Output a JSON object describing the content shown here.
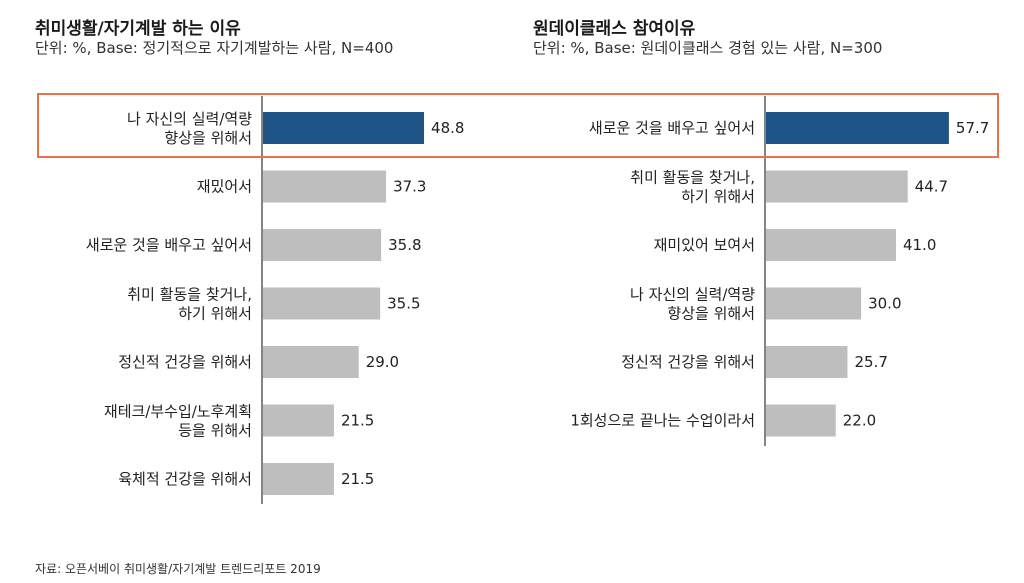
{
  "chart_data": [
    {
      "type": "bar",
      "orientation": "horizontal",
      "title": "취미생활/자기계발 하는 이유",
      "subtitle": "단위: %, Base: 정기적으로 자기계발하는 사람, N=400",
      "categories": [
        "나 자신의 실력/역량\n향상을 위해서",
        "재밌어서",
        "새로운 것을 배우고 싶어서",
        "취미 활동을 찾거나,\n하기 위해서",
        "정신적 건강을 위해서",
        "재테크/부수입/노후계획\n등을 위해서",
        "육체적 건강을 위해서"
      ],
      "values": [
        48.8,
        37.3,
        35.8,
        35.5,
        29.0,
        21.5,
        21.5
      ],
      "value_labels": [
        "48.8",
        "37.3",
        "35.8",
        "35.5",
        "29.0",
        "21.5",
        "21.5"
      ],
      "highlight_index": 0,
      "xlim": [
        0,
        100
      ]
    },
    {
      "type": "bar",
      "orientation": "horizontal",
      "title": "원데이클래스 참여이유",
      "subtitle": "단위: %, Base: 원데이클래스 경험 있는 사람, N=300",
      "categories": [
        "새로운 것을 배우고 싶어서",
        "취미 활동을 찾거나,\n하기 위해서",
        "재미있어 보여서",
        "나 자신의 실력/역량\n향상을 위해서",
        "정신적 건강을 위해서",
        "1회성으로 끝나는 수업이라서"
      ],
      "values": [
        57.7,
        44.7,
        41.0,
        30.0,
        25.7,
        22.0
      ],
      "value_labels": [
        "57.7",
        "44.7",
        "41.0",
        "30.0",
        "25.7",
        "22.0"
      ],
      "highlight_index": 0,
      "xlim": [
        0,
        100
      ]
    }
  ],
  "colors": {
    "highlight_bar": "#1E5486",
    "normal_bar": "#BEBEBE",
    "highlight_box": "#E8734A",
    "axis": "#333333"
  },
  "source": "자료: 오픈서베이 취미생활/자기계발 트렌드리포트 2019"
}
